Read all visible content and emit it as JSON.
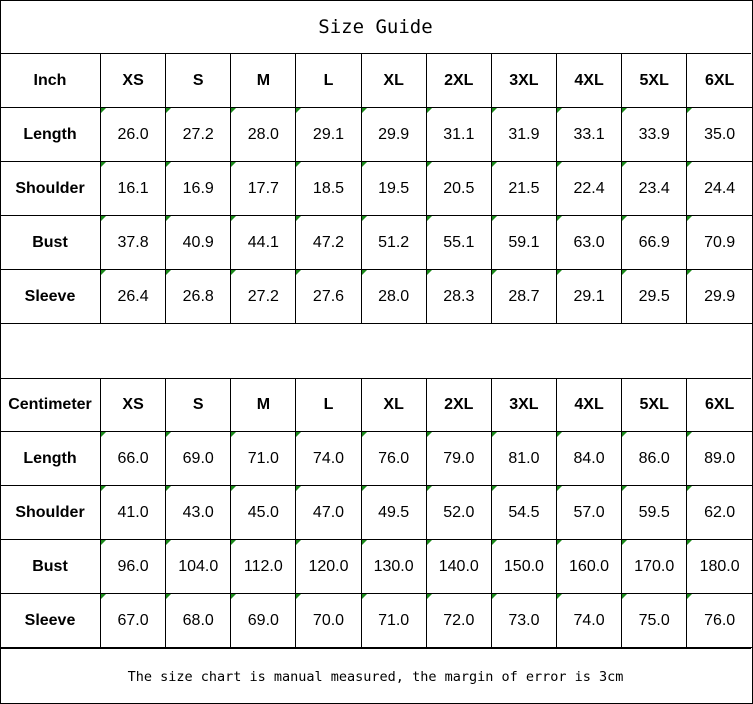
{
  "title": "Size Guide",
  "colors": {
    "corner_marker": "#1a8a1a"
  },
  "tables": [
    {
      "unit": "Inch",
      "sizes": [
        "XS",
        "S",
        "M",
        "L",
        "XL",
        "2XL",
        "3XL",
        "4XL",
        "5XL",
        "6XL"
      ],
      "rows": [
        {
          "label": "Length",
          "values": [
            "26.0",
            "27.2",
            "28.0",
            "29.1",
            "29.9",
            "31.1",
            "31.9",
            "33.1",
            "33.9",
            "35.0"
          ]
        },
        {
          "label": "Shoulder",
          "values": [
            "16.1",
            "16.9",
            "17.7",
            "18.5",
            "19.5",
            "20.5",
            "21.5",
            "22.4",
            "23.4",
            "24.4"
          ]
        },
        {
          "label": "Bust",
          "values": [
            "37.8",
            "40.9",
            "44.1",
            "47.2",
            "51.2",
            "55.1",
            "59.1",
            "63.0",
            "66.9",
            "70.9"
          ]
        },
        {
          "label": "Sleeve",
          "values": [
            "26.4",
            "26.8",
            "27.2",
            "27.6",
            "28.0",
            "28.3",
            "28.7",
            "29.1",
            "29.5",
            "29.9"
          ]
        }
      ]
    },
    {
      "unit": "Centimeter",
      "sizes": [
        "XS",
        "S",
        "M",
        "L",
        "XL",
        "2XL",
        "3XL",
        "4XL",
        "5XL",
        "6XL"
      ],
      "rows": [
        {
          "label": "Length",
          "values": [
            "66.0",
            "69.0",
            "71.0",
            "74.0",
            "76.0",
            "79.0",
            "81.0",
            "84.0",
            "86.0",
            "89.0"
          ]
        },
        {
          "label": "Shoulder",
          "values": [
            "41.0",
            "43.0",
            "45.0",
            "47.0",
            "49.5",
            "52.0",
            "54.5",
            "57.0",
            "59.5",
            "62.0"
          ]
        },
        {
          "label": "Bust",
          "values": [
            "96.0",
            "104.0",
            "112.0",
            "120.0",
            "130.0",
            "140.0",
            "150.0",
            "160.0",
            "170.0",
            "180.0"
          ]
        },
        {
          "label": "Sleeve",
          "values": [
            "67.0",
            "68.0",
            "69.0",
            "70.0",
            "71.0",
            "72.0",
            "73.0",
            "74.0",
            "75.0",
            "76.0"
          ]
        }
      ]
    }
  ],
  "note": "The size chart is manual measured, the margin of error is 3cm"
}
